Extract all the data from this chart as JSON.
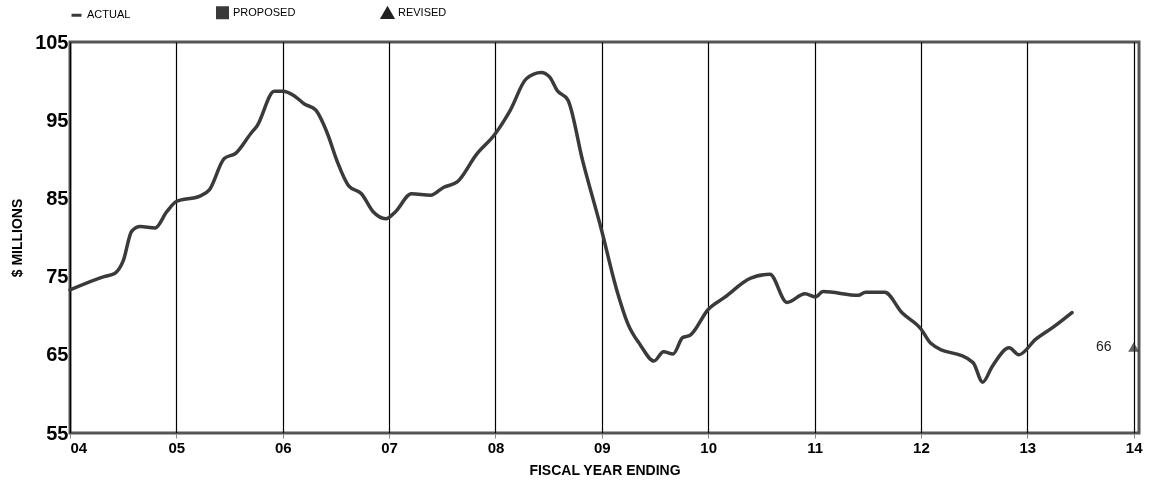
{
  "chart_data": {
    "type": "line",
    "xlabel": "FISCAL YEAR ENDING",
    "ylabel": "$ MILLIONS",
    "xlim": [
      4,
      14.05
    ],
    "ylim": [
      55,
      105
    ],
    "xticks": [
      {
        "value": 4,
        "label": "04"
      },
      {
        "value": 5,
        "label": "05"
      },
      {
        "value": 6,
        "label": "06"
      },
      {
        "value": 7,
        "label": "07"
      },
      {
        "value": 8,
        "label": "08"
      },
      {
        "value": 9,
        "label": "09"
      },
      {
        "value": 10,
        "label": "10"
      },
      {
        "value": 11,
        "label": "11"
      },
      {
        "value": 12,
        "label": "12"
      },
      {
        "value": 13,
        "label": "13"
      },
      {
        "value": 14,
        "label": "14"
      }
    ],
    "yticks": [
      55,
      65,
      75,
      85,
      95,
      105
    ],
    "grid": "x",
    "legend": "top",
    "line_style": "solid",
    "series": [
      {
        "name": "ACTUAL",
        "color": "#3a3a3a",
        "marker": "none",
        "x": [
          4.0,
          4.32,
          4.42,
          4.5,
          4.58,
          4.66,
          4.8,
          4.91,
          5.0,
          5.22,
          5.31,
          5.45,
          5.56,
          5.7,
          5.76,
          5.92,
          6.0,
          6.11,
          6.2,
          6.31,
          6.42,
          6.51,
          6.62,
          6.74,
          6.85,
          6.97,
          7.06,
          7.21,
          7.39,
          7.51,
          7.64,
          7.82,
          8.0,
          8.14,
          8.29,
          8.43,
          8.51,
          8.58,
          8.68,
          8.82,
          9.0,
          9.14,
          9.25,
          9.36,
          9.49,
          9.58,
          9.67,
          9.76,
          9.83,
          10.0,
          10.15,
          10.4,
          10.58,
          10.74,
          10.91,
          11.01,
          11.08,
          11.41,
          11.48,
          11.66,
          11.82,
          12.0,
          12.09,
          12.49,
          12.58,
          12.67,
          12.83,
          12.92,
          13.08,
          13.24,
          13.42
        ],
        "values": [
          73.3,
          75.0,
          75.4,
          77.0,
          80.8,
          81.4,
          81.2,
          83.3,
          84.6,
          85.3,
          86.1,
          90.1,
          90.8,
          93.3,
          94.3,
          98.7,
          98.7,
          98.1,
          97.1,
          96.3,
          93.3,
          89.8,
          86.6,
          85.6,
          83.3,
          82.4,
          83.3,
          85.6,
          85.4,
          86.4,
          87.1,
          90.6,
          93.3,
          96.3,
          100.3,
          101.1,
          100.5,
          98.8,
          97.6,
          89.8,
          80.8,
          73.3,
          68.8,
          66.3,
          64.2,
          65.4,
          65.1,
          67.2,
          67.5,
          70.8,
          72.3,
          74.8,
          75.3,
          71.7,
          72.8,
          72.4,
          73.1,
          72.6,
          73.0,
          73.0,
          70.4,
          68.3,
          66.5,
          64.0,
          61.5,
          63.5,
          65.9,
          65.0,
          67.0,
          68.5,
          70.4
        ]
      },
      {
        "name": "PROPOSED",
        "color": "#3a3a3a",
        "marker": "square"
      },
      {
        "name": "REVISED",
        "color": "#222222",
        "type": "scatter",
        "marker": "triangle",
        "x": [
          14
        ],
        "values": [
          66
        ],
        "value_labels": [
          "66"
        ]
      }
    ]
  }
}
